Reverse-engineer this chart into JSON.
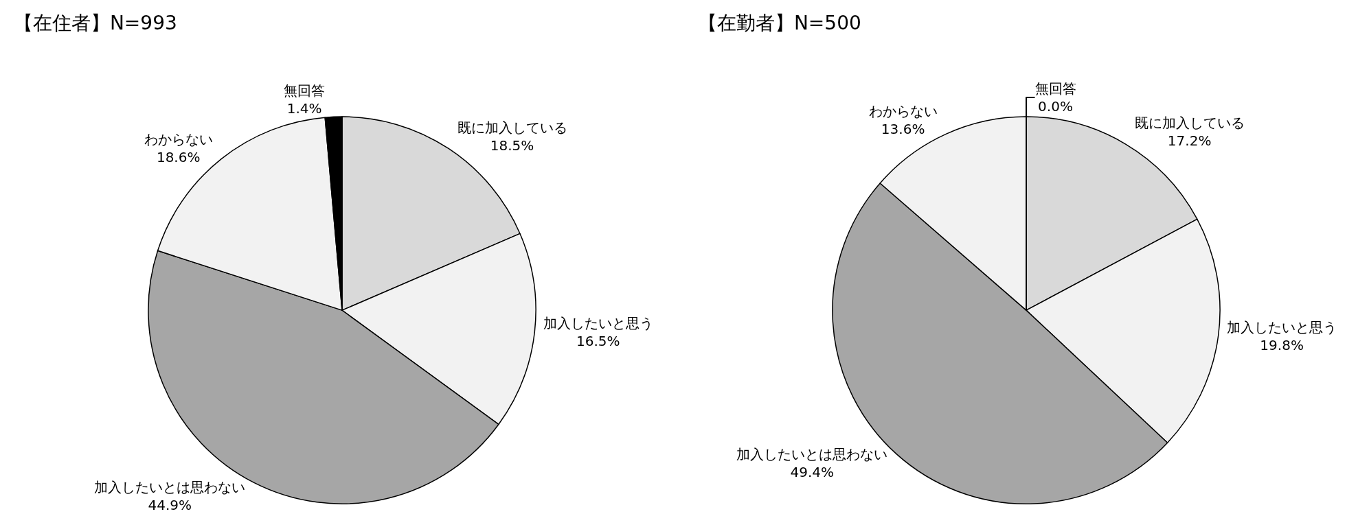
{
  "chart_data": [
    {
      "type": "pie",
      "title": "【在住者】N=993",
      "categories": [
        "既に加入している",
        "加入したいと思う",
        "加入したいとは思わない",
        "わからない",
        "無回答"
      ],
      "values": [
        18.5,
        16.5,
        44.9,
        18.6,
        1.4
      ],
      "value_labels": [
        "18.5%",
        "16.5%",
        "44.9%",
        "18.6%",
        "1.4%"
      ],
      "colors": [
        "#d9d9d9",
        "#f2f2f2",
        "#a6a6a6",
        "#f2f2f2",
        "#000000"
      ],
      "legend": false
    },
    {
      "type": "pie",
      "title": "【在勤者】N=500",
      "categories": [
        "既に加入している",
        "加入したいと思う",
        "加入したいとは思わない",
        "わからない",
        "無回答"
      ],
      "values": [
        17.2,
        19.8,
        49.4,
        13.6,
        0.0
      ],
      "value_labels": [
        "17.2%",
        "19.8%",
        "49.4%",
        "13.6%",
        "0.0%"
      ],
      "colors": [
        "#d9d9d9",
        "#f2f2f2",
        "#a6a6a6",
        "#f2f2f2",
        "#000000"
      ],
      "legend": false
    }
  ]
}
